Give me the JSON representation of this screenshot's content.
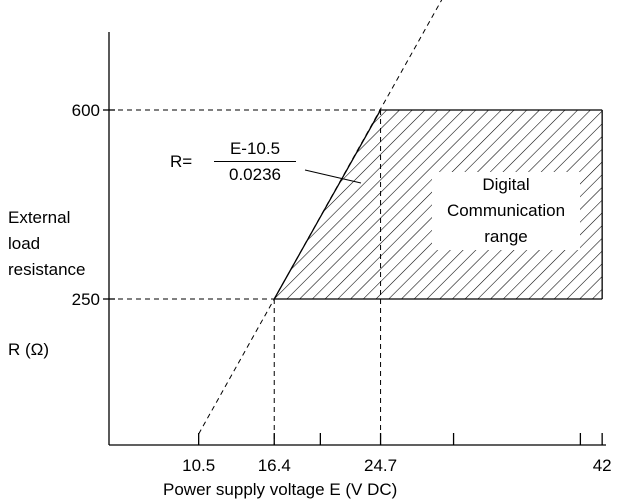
{
  "chart_data": {
    "type": "line",
    "xlabel": "Power supply voltage  E (V DC)",
    "ylabel_lines": [
      "External",
      "load",
      "resistance"
    ],
    "yunit": "R (Ω)",
    "x_ticks": [
      {
        "value": 10.5,
        "label": "10.5"
      },
      {
        "value": 16.4,
        "label": "16.4"
      },
      {
        "value": 24.7,
        "label": "24.7"
      },
      {
        "value": 42,
        "label": "42"
      }
    ],
    "x_minor_ticks": [
      20.0,
      30.4,
      40.3
    ],
    "y_ticks": [
      {
        "value": 250,
        "label": "250"
      },
      {
        "value": 600,
        "label": "600"
      }
    ],
    "xlim": [
      3.5,
      42.3
    ],
    "ylim": [
      0,
      800
    ],
    "formula": {
      "prefix": "R=",
      "numerator": "E-10.5",
      "denominator": "0.0236"
    },
    "region_label": [
      "Digital",
      "Communication",
      "range"
    ],
    "line": {
      "x": [
        10.5,
        47.0
      ],
      "y": [
        0,
        1546.6
      ]
    },
    "region": {
      "x": [
        16.4,
        24.7,
        42,
        42
      ],
      "y": [
        250,
        600,
        600,
        250
      ]
    }
  }
}
